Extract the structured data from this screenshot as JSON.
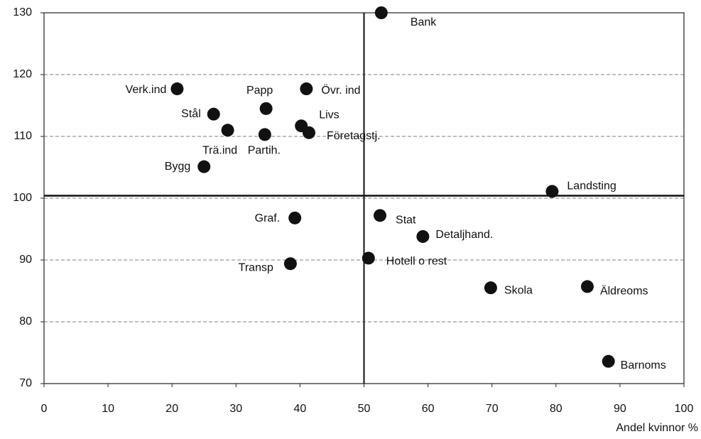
{
  "chart_data": {
    "type": "scatter",
    "x_label": "Andel kvinnor %",
    "labels": [
      "Bank",
      "Verk.ind",
      "Papp",
      "Övr. ind",
      "Stål",
      "Trä.ind",
      "Partih.",
      "Livs",
      "Företagstj.",
      "Bygg",
      "Landsting",
      "Graf.",
      "Stat",
      "Detaljhand.",
      "Hotell o rest",
      "Transp",
      "Skola",
      "Äldreoms",
      "Barnoms"
    ],
    "x": [
      52.7,
      20.8,
      34.7,
      41.0,
      26.5,
      28.7,
      34.5,
      40.2,
      41.4,
      25.0,
      79.4,
      39.2,
      52.5,
      59.2,
      50.7,
      38.5,
      69.8,
      84.9,
      88.2
    ],
    "values": [
      130,
      117.7,
      114.5,
      117.7,
      113.6,
      111.0,
      110.3,
      111.7,
      110.6,
      105.1,
      101.1,
      96.8,
      97.2,
      93.8,
      90.3,
      89.4,
      85.5,
      85.7,
      73.6
    ],
    "color": "#111111",
    "xlim": [
      0,
      100
    ],
    "xticks": [
      0,
      10,
      20,
      30,
      40,
      50,
      60,
      70,
      80,
      90,
      100
    ],
    "ylim": [
      70,
      130
    ],
    "yticks": [
      70,
      80,
      90,
      100,
      110,
      120,
      130
    ],
    "grid": true,
    "vlines": [
      50
    ],
    "hlines": [
      100.4
    ]
  }
}
